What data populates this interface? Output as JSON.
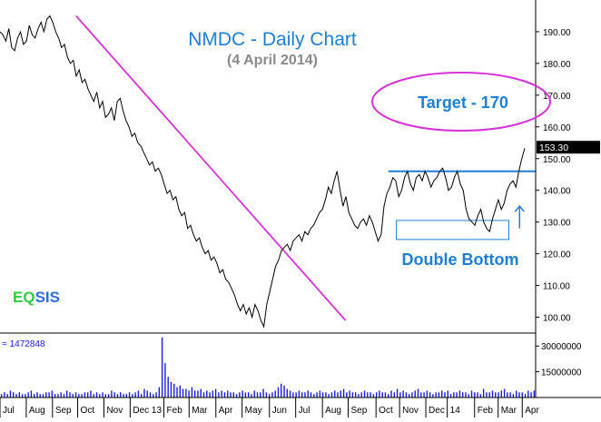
{
  "chart_data": {
    "type": "line",
    "title": "NMDC - Daily Chart",
    "subtitle": "(4 April  2014)",
    "brand": {
      "part1": "EQ",
      "part2": "SIS",
      "color1": "#2ecc40",
      "color2": "#2b6fe0"
    },
    "price": {
      "ylim": [
        95,
        200
      ],
      "yticks": [
        100,
        110,
        120,
        130,
        140,
        150,
        160,
        170,
        180,
        190
      ],
      "ytick_labels": [
        "100.00",
        "110.00",
        "120.00",
        "130.00",
        "140.00",
        "150.00",
        "160.00",
        "170.00",
        "180.00",
        "190.00"
      ],
      "last_value_label": "153.30",
      "last_value": 153.3,
      "x_range": [
        0,
        100
      ],
      "values": [
        190,
        189,
        187,
        191,
        185,
        184,
        188,
        190,
        186,
        187,
        192,
        189,
        188,
        191,
        193,
        190,
        194,
        195,
        193,
        190,
        188,
        185,
        186,
        182,
        180,
        181,
        176,
        178,
        174,
        175,
        172,
        170,
        168,
        171,
        166,
        168,
        163,
        164,
        166,
        162,
        168,
        169,
        165,
        162,
        160,
        157,
        158,
        155,
        154,
        152,
        150,
        148,
        149,
        146,
        147,
        145,
        142,
        139,
        140,
        137,
        138,
        134,
        132,
        133,
        128,
        129,
        126,
        124,
        125,
        122,
        120,
        121,
        118,
        119,
        117,
        114,
        115,
        112,
        111,
        109,
        107,
        104,
        102,
        104,
        101,
        103,
        100,
        104,
        102,
        99,
        97,
        104,
        108,
        112,
        116,
        118,
        121,
        122,
        123,
        121,
        124,
        125,
        126,
        124,
        127,
        126,
        128,
        129,
        131,
        133,
        134,
        137,
        141,
        139,
        143,
        146,
        140,
        135,
        138,
        133,
        131,
        129,
        128,
        130,
        131,
        129,
        132,
        130,
        127,
        124,
        126,
        135,
        139,
        141,
        144,
        143,
        138,
        140,
        144,
        146,
        142,
        140,
        144,
        145,
        143,
        146,
        144,
        141,
        143,
        144,
        146,
        147,
        144,
        140,
        141,
        144,
        146,
        142,
        140,
        134,
        131,
        130,
        129,
        132,
        134,
        130,
        128,
        127,
        131,
        134,
        137,
        134,
        136,
        140,
        142,
        143,
        141,
        146,
        150,
        153.3
      ],
      "color": "#000000"
    },
    "volume": {
      "label": "= 1472848",
      "ylim": [
        0,
        37000000
      ],
      "yticks": [
        15000000,
        30000000
      ],
      "ytick_labels": [
        "15000000",
        "30000000"
      ],
      "bar_color": "#1a1adc",
      "values": [
        2,
        3,
        2,
        4,
        3,
        2,
        3,
        2,
        2,
        3,
        4,
        2,
        3,
        2,
        2,
        3,
        3,
        4,
        2,
        2,
        3,
        2,
        4,
        3,
        2,
        3,
        2,
        2,
        3,
        3,
        4,
        2,
        3,
        2,
        3,
        2,
        2,
        4,
        3,
        2,
        3,
        2,
        2,
        3,
        2,
        3,
        4,
        2,
        5,
        4,
        3,
        2,
        3,
        6,
        35,
        20,
        12,
        9,
        8,
        6,
        7,
        5,
        5,
        4,
        6,
        4,
        4,
        5,
        3,
        4,
        3,
        4,
        5,
        3,
        4,
        3,
        4,
        3,
        3,
        2,
        3,
        4,
        3,
        3,
        2,
        4,
        3,
        3,
        5,
        3,
        2,
        3,
        4,
        6,
        8,
        7,
        5,
        4,
        3,
        3,
        4,
        3,
        3,
        4,
        3,
        2,
        3,
        4,
        3,
        3,
        2,
        3,
        4,
        3,
        4,
        5,
        3,
        4,
        3,
        3,
        2,
        3,
        4,
        3,
        3,
        2,
        3,
        4,
        3,
        3,
        2,
        4,
        3,
        5,
        3,
        4,
        3,
        2,
        3,
        4,
        5,
        3,
        3,
        4,
        3,
        2,
        3,
        3,
        4,
        3,
        4,
        2,
        3,
        3,
        4,
        3,
        3,
        2,
        4,
        3,
        3,
        2,
        5,
        3,
        3,
        4,
        3,
        3,
        4,
        5,
        3,
        3,
        2,
        4,
        3,
        3,
        2,
        4,
        3,
        4
      ]
    },
    "x_axis": {
      "labels": [
        "Jul",
        "Aug",
        "Sep",
        "Oct",
        "Nov",
        "Dec 13",
        "Feb",
        "Mar",
        "Apr",
        "May",
        "Jun",
        "Jul",
        "Aug",
        "Sep",
        "Oct",
        "Nov",
        "Dec",
        "14",
        "Feb",
        "Mar",
        "Apr"
      ],
      "positions": [
        0,
        4.9,
        9.8,
        14.5,
        19.4,
        24.3,
        30.6,
        35.3,
        40.3,
        45.2,
        50.3,
        55.2,
        60.2,
        65.0,
        70.2,
        74.6,
        79.5,
        83.5,
        88.6,
        93.0,
        97.5
      ]
    },
    "annotations": {
      "target_label": "Target - 170",
      "pattern_label": "Double Bottom",
      "line_color": "#d633d6",
      "resistance_color": "#1e7fd6",
      "text_color": "#1e7fd6",
      "trendline": {
        "x1": 14.2,
        "y1": 195,
        "x2": 64.5,
        "y2": 99
      },
      "resistance": {
        "x1": 72.5,
        "x2": 100,
        "y": 146
      },
      "bottom_box": {
        "x1": 74,
        "x2": 95,
        "y1": 124.5,
        "y2": 130.5
      },
      "arrow": {
        "x": 97,
        "y1": 128,
        "y2": 135
      }
    }
  }
}
